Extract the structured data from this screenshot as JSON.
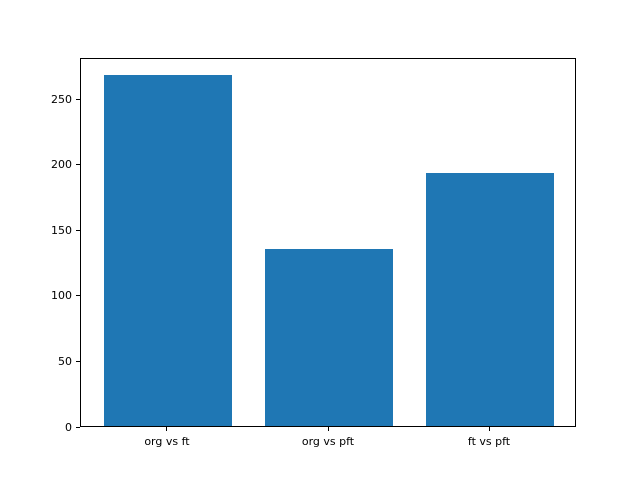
{
  "chart_data": {
    "type": "bar",
    "title": "",
    "xlabel": "",
    "ylabel": "",
    "categories": [
      "org vs ft",
      "org vs pft",
      "ft vs pft"
    ],
    "values": [
      268,
      135,
      193
    ],
    "ylim": [
      0,
      281.4
    ],
    "yticks": [
      0,
      50,
      100,
      150,
      200,
      250
    ],
    "grid": false,
    "legend": null,
    "bar_color": "#1f77b4",
    "frame_color": "#000000",
    "tick_label_color": "#000000",
    "background_color": "#ffffff"
  }
}
